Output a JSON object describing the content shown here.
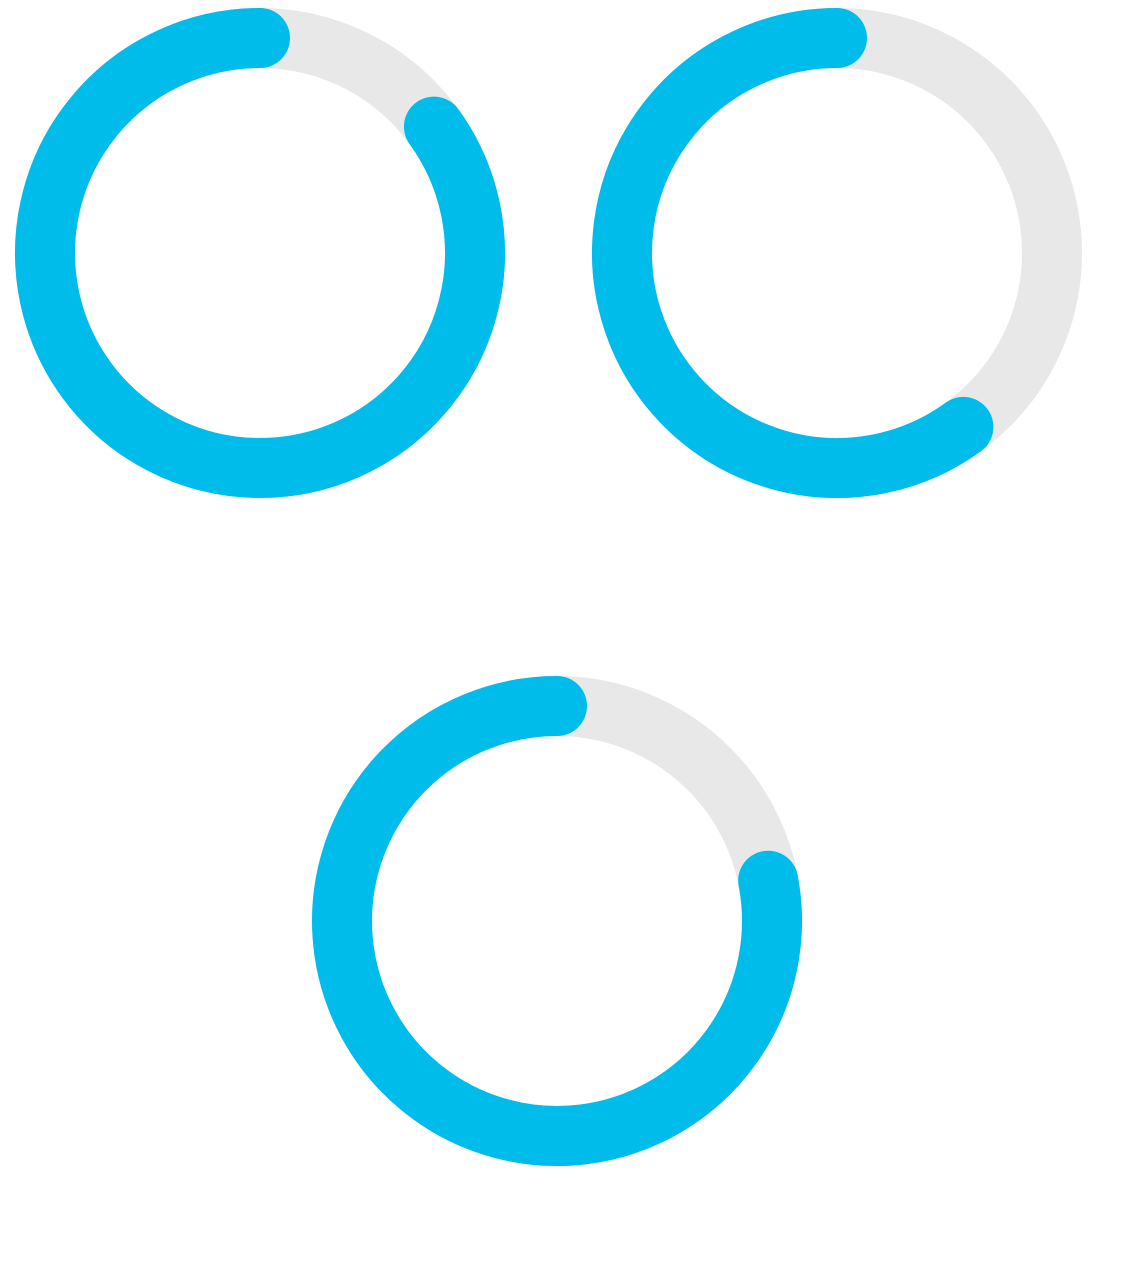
{
  "chart_data": [
    {
      "type": "progress",
      "value": 85,
      "ylim": [
        0,
        100
      ],
      "color": "#00bceb",
      "track_color": "#e8e8e8"
    },
    {
      "type": "progress",
      "value": 60,
      "ylim": [
        0,
        100
      ],
      "color": "#00bceb",
      "track_color": "#e8e8e8"
    },
    {
      "type": "progress",
      "value": 78,
      "ylim": [
        0,
        100
      ],
      "color": "#00bceb",
      "track_color": "#e8e8e8"
    }
  ]
}
